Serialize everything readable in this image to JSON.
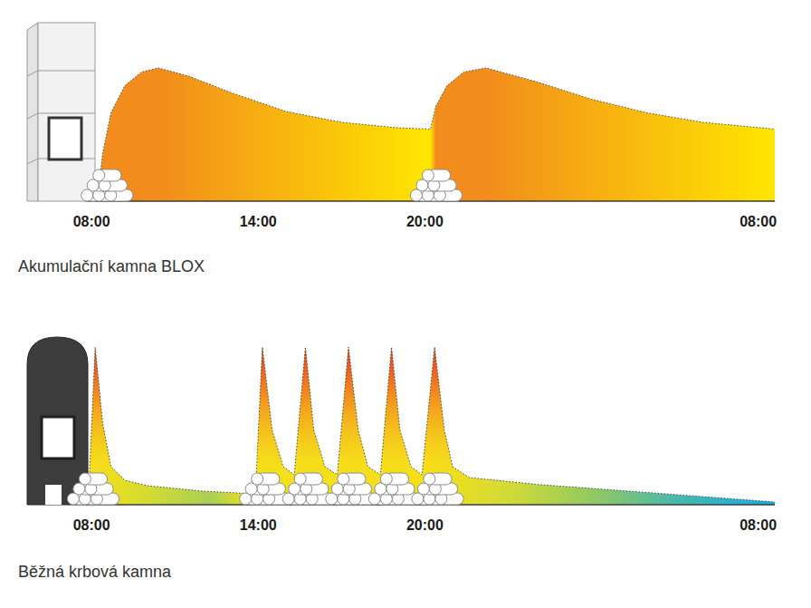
{
  "chart_data": [
    {
      "type": "area",
      "title": "Akumulační kamna BLOX",
      "x": [
        8.2,
        8.4,
        8.7,
        9.2,
        9.8,
        10.4,
        11.5,
        13,
        15,
        17,
        19,
        20.2,
        20.4,
        20.8,
        21.4,
        22.2,
        24,
        26,
        28,
        30,
        32.6
      ],
      "series": [
        {
          "color": "#f28c1c",
          "values": [
            0,
            35,
            65,
            85,
            95,
            98,
            92,
            80,
            66,
            58,
            54,
            53,
            70,
            85,
            95,
            98,
            88,
            75,
            65,
            58,
            53
          ]
        }
      ],
      "xlim": [
        7.8,
        32.6
      ],
      "ylim": [
        0,
        120
      ],
      "xticks": [
        {
          "value": 8,
          "label": "08:00"
        },
        {
          "value": 14,
          "label": "14:00"
        },
        {
          "value": 20,
          "label": "20:00"
        },
        {
          "value": 32,
          "label": "08:00"
        }
      ],
      "tick_labels": "x",
      "loads": [
        8.45,
        20.3
      ]
    },
    {
      "type": "area",
      "title": "Běžná krbová kamna",
      "x": [
        7.9,
        8.13,
        8.4,
        8.7,
        9.2,
        10,
        12,
        13.9,
        14.15,
        14.5,
        14.9,
        15.3,
        15.7,
        16,
        16.4,
        16.85,
        17.25,
        17.6,
        17.95,
        18.4,
        18.8,
        19.1,
        19.5,
        19.9,
        20.35,
        20.7,
        21,
        21.6,
        24,
        28,
        32.6
      ],
      "series": [
        {
          "color": "#e8392a",
          "values": [
            10,
            116,
            60,
            28,
            18,
            14,
            10,
            8,
            116,
            55,
            28,
            22,
            116,
            55,
            28,
            22,
            116,
            55,
            28,
            22,
            116,
            55,
            28,
            22,
            116,
            55,
            28,
            20,
            15,
            9,
            2
          ]
        }
      ],
      "xlim": [
        7.8,
        32.6
      ],
      "ylim": [
        0,
        120
      ],
      "xticks": [
        {
          "value": 8,
          "label": "08:00"
        },
        {
          "value": 14,
          "label": "14:00"
        },
        {
          "value": 20,
          "label": "20:00"
        },
        {
          "value": 32,
          "label": "08:00"
        }
      ],
      "tick_labels": "x",
      "loads": [
        7.95,
        14.15,
        15.7,
        17.25,
        18.8,
        20.35
      ]
    }
  ]
}
